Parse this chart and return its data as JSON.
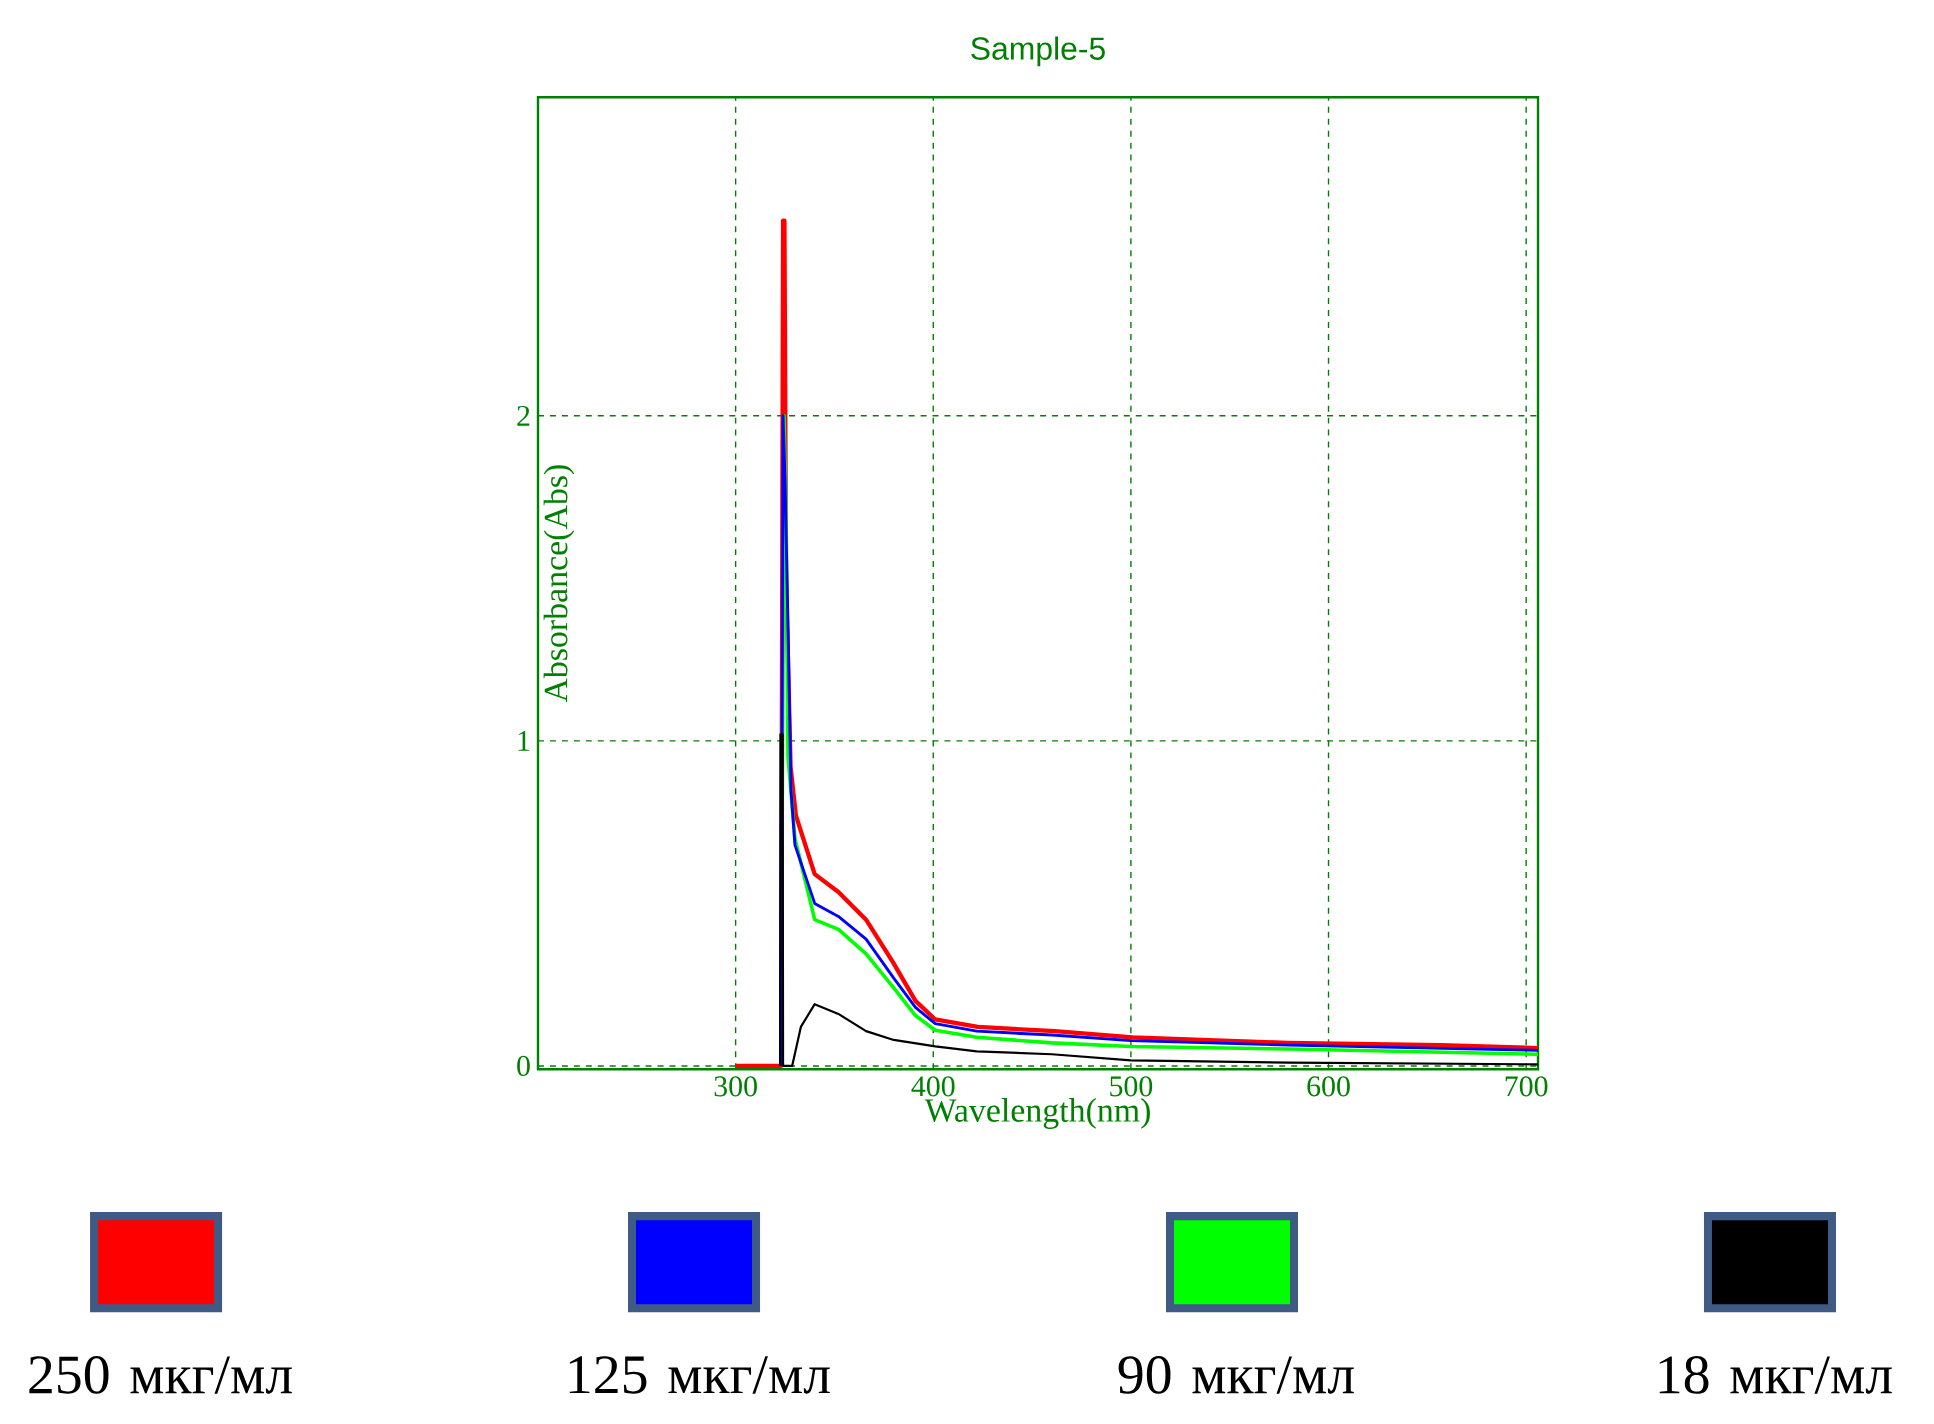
{
  "chart_data": {
    "type": "line",
    "title": "Sample-5",
    "xlabel": "Wavelength(nm)",
    "ylabel": "Absorbance(Abs)",
    "xlim": [
      200,
      706
    ],
    "ylim": [
      -0.01,
      2.98
    ],
    "xticks": [
      300,
      400,
      500,
      600,
      700
    ],
    "yticks": [
      0,
      1,
      2
    ],
    "grid": true,
    "legend": "bottom",
    "series": [
      {
        "name": "250 мкг/мл",
        "color": "#ff0000",
        "x": [
          300,
          323,
          324,
          324.7,
          325.5,
          327.8,
          330.5,
          340,
          352,
          366,
          379.5,
          391,
          401,
          422.5,
          461.6,
          500.8,
          579,
          657,
          706
        ],
        "values": [
          0,
          0,
          2.6,
          2.6,
          1.5,
          0.92,
          0.77,
          0.59,
          0.535,
          0.45,
          0.32,
          0.2,
          0.143,
          0.12,
          0.107,
          0.088,
          0.071,
          0.064,
          0.055
        ]
      },
      {
        "name": "125 мкг/мл",
        "color": "#0000ff",
        "x": [
          323,
          324,
          325,
          326.6,
          328,
          330,
          340,
          352,
          366,
          380,
          391,
          401,
          422,
          460,
          500,
          580,
          706
        ],
        "values": [
          0,
          2.0,
          1.8,
          1.32,
          0.85,
          0.68,
          0.5,
          0.46,
          0.39,
          0.27,
          0.18,
          0.13,
          0.107,
          0.095,
          0.078,
          0.064,
          0.048
        ]
      },
      {
        "name": "90 мкг/мл",
        "color": "#00ff00",
        "x": [
          323,
          324.5,
          325.5,
          326.5,
          330,
          340,
          352,
          366,
          380,
          391,
          401,
          422,
          460,
          500,
          580,
          706
        ],
        "values": [
          0,
          2.0,
          1.7,
          0.95,
          0.7,
          0.45,
          0.42,
          0.345,
          0.24,
          0.155,
          0.11,
          0.088,
          0.071,
          0.06,
          0.052,
          0.036
        ]
      },
      {
        "name": "18 мкг/мл",
        "color": "#000000",
        "x": [
          322.5,
          322.7,
          323.8,
          324,
          328.6,
          333,
          340,
          352,
          366,
          380,
          401,
          422,
          460,
          500,
          580,
          706
        ],
        "values": [
          0,
          1.02,
          1.02,
          0,
          0,
          0.12,
          0.19,
          0.16,
          0.107,
          0.08,
          0.06,
          0.045,
          0.036,
          0.017,
          0.01,
          0.005
        ]
      }
    ]
  }
}
